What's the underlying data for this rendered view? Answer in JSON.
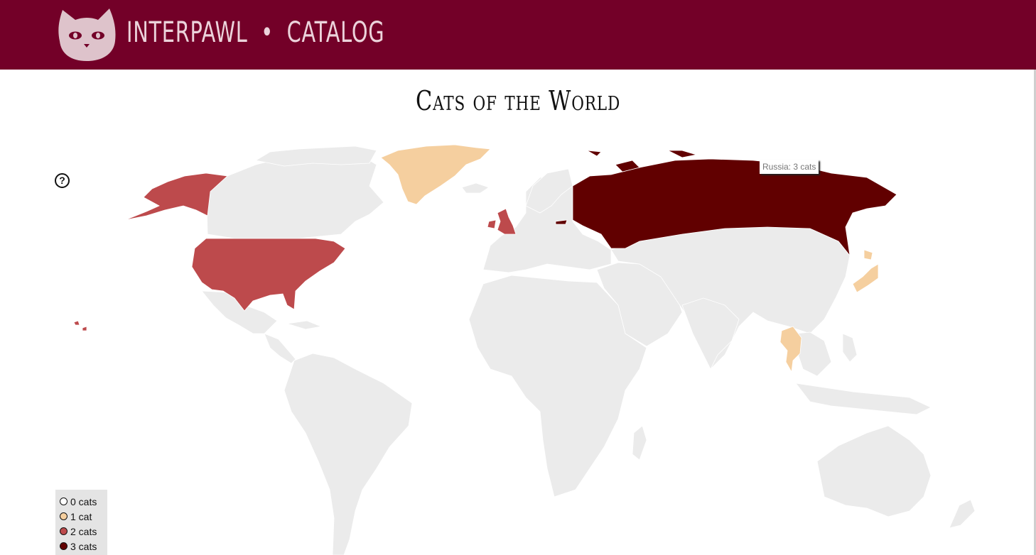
{
  "header": {
    "brand": "INTERPAWL",
    "separator": "•",
    "section": "CATALOG",
    "background": "#730028",
    "logo_icon": "cat-face-icon"
  },
  "page": {
    "title": "Cats of the World",
    "help_label": "?"
  },
  "tooltip": {
    "text": "Russia: 3 cats"
  },
  "map": {
    "base_color": "#ebebeb",
    "countries_with_cats": [
      {
        "name": "United States",
        "cats": 2
      },
      {
        "name": "United Kingdom",
        "cats": 2
      },
      {
        "name": "Greenland",
        "cats": 1
      },
      {
        "name": "Japan",
        "cats": 1
      },
      {
        "name": "Thailand",
        "cats": 1
      },
      {
        "name": "Russia",
        "cats": 3
      }
    ]
  },
  "legend": {
    "items": [
      {
        "label": "0 cats",
        "color": "#ffffff"
      },
      {
        "label": "1 cat",
        "color": "#f5cf9f"
      },
      {
        "label": "2 cats",
        "color": "#bd4a4c"
      },
      {
        "label": "3 cats",
        "color": "#610000"
      }
    ]
  }
}
